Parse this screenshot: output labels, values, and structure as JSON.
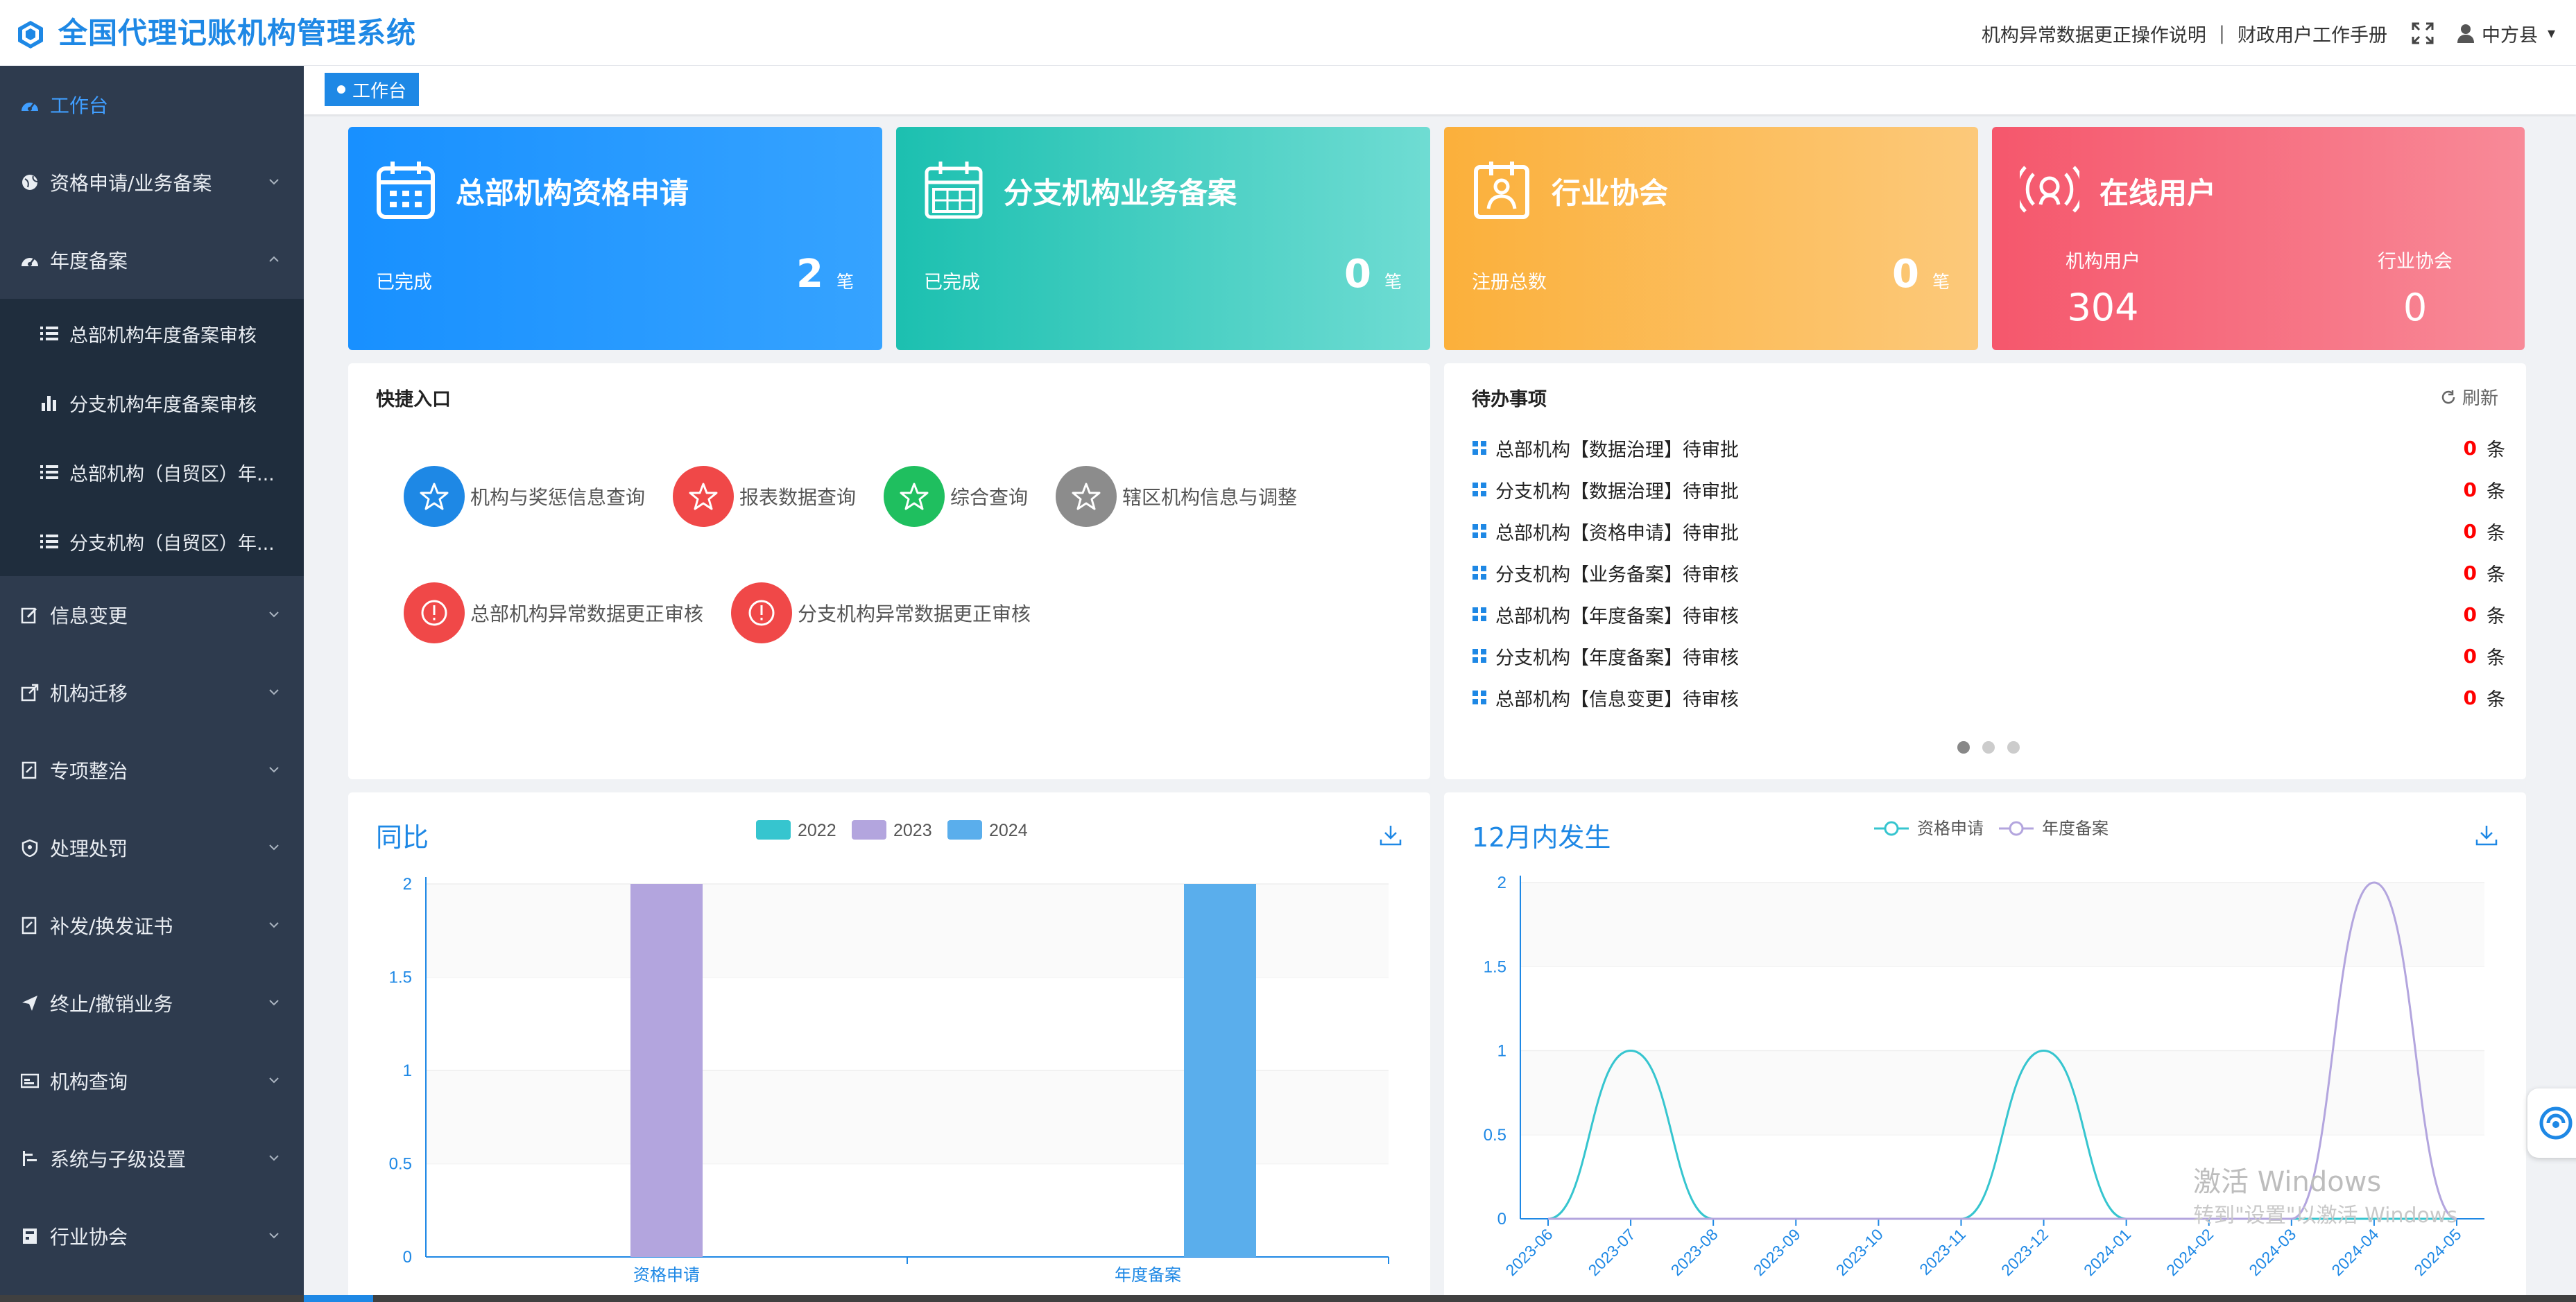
{
  "app": {
    "title": "全国代理记账机构管理系统"
  },
  "header": {
    "link1": "机构异常数据更正操作说明",
    "separator": "|",
    "link2": "财政用户工作手册",
    "user": "中方县"
  },
  "sidebar": {
    "items": [
      {
        "label": "工作台",
        "icon": "dashboard-icon"
      },
      {
        "label": "资格申请/业务备案",
        "icon": "globe-icon"
      },
      {
        "label": "年度备案",
        "icon": "dashboard-icon"
      },
      {
        "label": "信息变更",
        "icon": "edit-icon"
      },
      {
        "label": "机构迁移",
        "icon": "external-link-icon"
      },
      {
        "label": "专项整治",
        "icon": "document-edit-icon"
      },
      {
        "label": "处理处罚",
        "icon": "shield-icon"
      },
      {
        "label": "补发/换发证书",
        "icon": "document-edit-icon"
      },
      {
        "label": "终止/撤销业务",
        "icon": "send-icon"
      },
      {
        "label": "机构查询",
        "icon": "card-icon"
      },
      {
        "label": "系统与子级设置",
        "icon": "sliders-icon"
      },
      {
        "label": "行业协会",
        "icon": "building-icon"
      }
    ],
    "subitems": [
      {
        "label": "总部机构年度备案审核",
        "icon": "list-icon"
      },
      {
        "label": "分支机构年度备案审核",
        "icon": "bar-chart-icon"
      },
      {
        "label": "总部机构（自贸区）年...",
        "icon": "list-icon"
      },
      {
        "label": "分支机构（自贸区）年...",
        "icon": "list-icon"
      }
    ]
  },
  "tabs": [
    {
      "label": "工作台"
    }
  ],
  "cards": [
    {
      "title": "总部机构资格申请",
      "label": "已完成",
      "value": "2",
      "unit": "笔",
      "color_from": "#1890ff",
      "color_to": "#36a3ff"
    },
    {
      "title": "分支机构业务备案",
      "label": "已完成",
      "value": "0",
      "unit": "笔",
      "color_from": "#1cc0b0",
      "color_to": "#6fdcd3"
    },
    {
      "title": "行业协会",
      "label": "注册总数",
      "value": "0",
      "unit": "笔",
      "color_from": "#fbb03b",
      "color_to": "#fcc97a"
    },
    {
      "title": "在线用户",
      "col1_label": "机构用户",
      "col1_value": "304",
      "col2_label": "行业协会",
      "col2_value": "0",
      "color_from": "#f5576c",
      "color_to": "#f88a98"
    }
  ],
  "quick": {
    "title": "快捷入口",
    "items": [
      {
        "label": "机构与奖惩信息查询",
        "color": "#1e88e5",
        "icon": "star-icon"
      },
      {
        "label": "报表数据查询",
        "color": "#f04848",
        "icon": "star-icon"
      },
      {
        "label": "综合查询",
        "color": "#1fbf5f",
        "icon": "star-icon"
      },
      {
        "label": "辖区机构信息与调整",
        "color": "#8c8c8c",
        "icon": "star-icon"
      },
      {
        "label": "总部机构异常数据更正审核",
        "color": "#f04848",
        "icon": "alert-icon"
      },
      {
        "label": "分支机构异常数据更正审核",
        "color": "#f04848",
        "icon": "alert-icon"
      }
    ]
  },
  "todo": {
    "title": "待办事项",
    "refresh": "刷新",
    "unit": "条",
    "items": [
      {
        "label": "总部机构【数据治理】待审批",
        "count": "0"
      },
      {
        "label": "分支机构【数据治理】待审批",
        "count": "0"
      },
      {
        "label": "总部机构【资格申请】待审批",
        "count": "0"
      },
      {
        "label": "分支机构【业务备案】待审核",
        "count": "0"
      },
      {
        "label": "总部机构【年度备案】待审核",
        "count": "0"
      },
      {
        "label": "分支机构【年度备案】待审核",
        "count": "0"
      },
      {
        "label": "总部机构【信息变更】待审核",
        "count": "0"
      }
    ]
  },
  "chart_data": [
    {
      "type": "bar",
      "title": "同比",
      "categories": [
        "资格申请",
        "年度备案"
      ],
      "series": [
        {
          "name": "2022",
          "color": "#36c5cf",
          "values": [
            0,
            0
          ]
        },
        {
          "name": "2023",
          "color": "#b3a5de",
          "values": [
            2,
            0
          ]
        },
        {
          "name": "2024",
          "color": "#5aaeec",
          "values": [
            0,
            2
          ]
        }
      ],
      "ylim": [
        0,
        2
      ],
      "yticks": [
        "0",
        "0.5",
        "1",
        "1.5",
        "2"
      ],
      "legend": "top",
      "grid": true
    },
    {
      "type": "line",
      "title": "12月内发生",
      "x": [
        "2023-06",
        "2023-07",
        "2023-08",
        "2023-09",
        "2023-10",
        "2023-11",
        "2023-12",
        "2024-01",
        "2024-02",
        "2024-03",
        "2024-04",
        "2024-05"
      ],
      "series": [
        {
          "name": "资格申请",
          "color": "#36c5cf",
          "values": [
            0,
            1,
            0,
            0,
            0,
            0,
            1,
            0,
            0,
            0,
            0,
            0
          ]
        },
        {
          "name": "年度备案",
          "color": "#b3a5de",
          "values": [
            0,
            0,
            0,
            0,
            0,
            0,
            0,
            0,
            0,
            0,
            2,
            0
          ]
        }
      ],
      "ylim": [
        0,
        2
      ],
      "yticks": [
        "0",
        "0.5",
        "1",
        "1.5",
        "2"
      ],
      "legend": "top",
      "grid": true
    }
  ],
  "watermark": {
    "line1": "激活 Windows",
    "line2": "转到\"设置\"以激活 Windows"
  }
}
